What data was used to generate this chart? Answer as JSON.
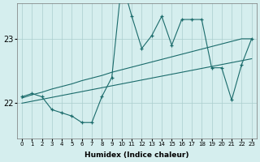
{
  "x": [
    0,
    1,
    2,
    3,
    4,
    5,
    6,
    7,
    8,
    9,
    10,
    11,
    12,
    13,
    14,
    15,
    16,
    17,
    18,
    19,
    20,
    21,
    22,
    23
  ],
  "y_main": [
    22.1,
    22.15,
    22.1,
    21.9,
    21.85,
    21.8,
    21.7,
    21.7,
    22.1,
    22.4,
    23.9,
    23.35,
    22.85,
    23.05,
    23.35,
    22.9,
    23.3,
    23.3,
    23.3,
    22.55,
    22.55,
    22.05,
    22.6,
    23.0
  ],
  "y_trend_upper": [
    22.08,
    22.13,
    22.17,
    22.22,
    22.26,
    22.3,
    22.35,
    22.39,
    22.43,
    22.48,
    22.52,
    22.56,
    22.6,
    22.64,
    22.68,
    22.72,
    22.76,
    22.8,
    22.84,
    22.88,
    22.92,
    22.96,
    23.0,
    23.0
  ],
  "y_trend_lower": [
    22.0,
    22.03,
    22.06,
    22.09,
    22.12,
    22.15,
    22.18,
    22.21,
    22.24,
    22.27,
    22.3,
    22.33,
    22.36,
    22.39,
    22.42,
    22.45,
    22.48,
    22.51,
    22.54,
    22.57,
    22.6,
    22.63,
    22.66,
    22.69
  ],
  "background_color": "#d5eeee",
  "grid_color": "#aacece",
  "line_color": "#1a6b6b",
  "ylabel_values": [
    22,
    23
  ],
  "xlabel": "Humidex (Indice chaleur)",
  "ylim": [
    21.45,
    23.55
  ],
  "xlim": [
    -0.5,
    23.5
  ]
}
